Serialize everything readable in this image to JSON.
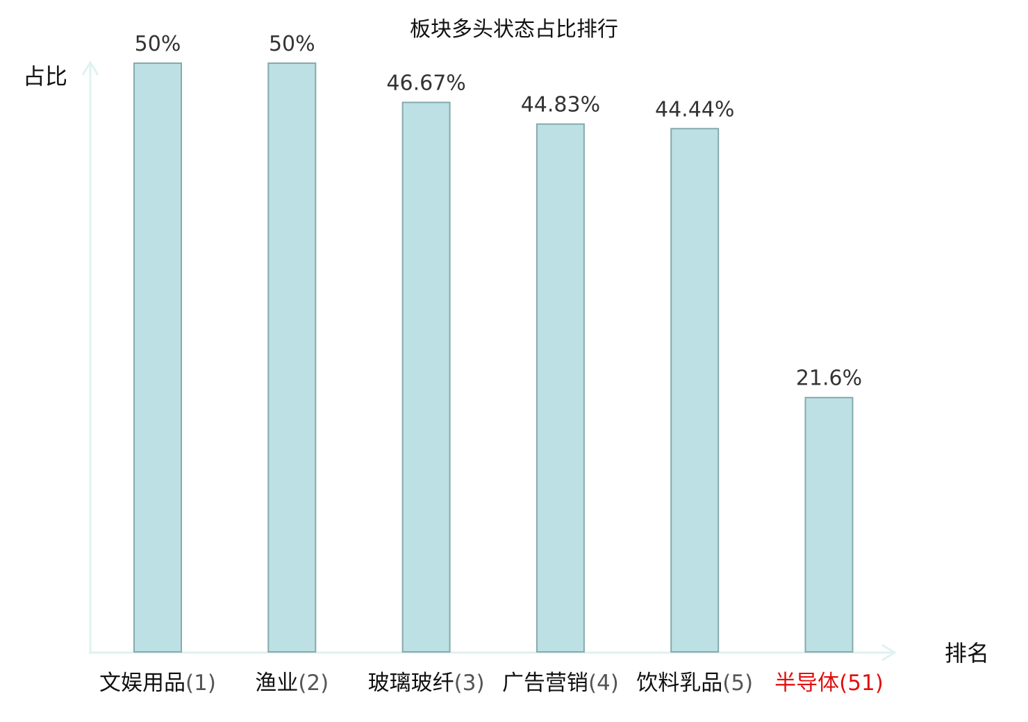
{
  "chart_data": {
    "type": "bar",
    "title": "板块多头状态占比排行",
    "ylabel": "占比",
    "xlabel": "排名",
    "categories": [
      "文娱用品",
      "渔业",
      "玻璃玻纤",
      "广告营销",
      "饮料乳品",
      "半导体"
    ],
    "ranks": [
      "(1)",
      "(2)",
      "(3)",
      "(4)",
      "(5)",
      "(51)"
    ],
    "values": [
      50,
      50,
      46.67,
      44.83,
      44.44,
      21.6
    ],
    "value_labels": [
      "50%",
      "50%",
      "46.67%",
      "44.83%",
      "44.44%",
      "21.6%"
    ],
    "highlight_index": 5,
    "ylim": [
      0,
      50
    ],
    "grid": false,
    "colors": {
      "bar_fill": "#bce0e3",
      "bar_stroke": "#86a9ab",
      "axis": "#dff2ef",
      "highlight": "#e01010",
      "text": "#111111"
    }
  }
}
